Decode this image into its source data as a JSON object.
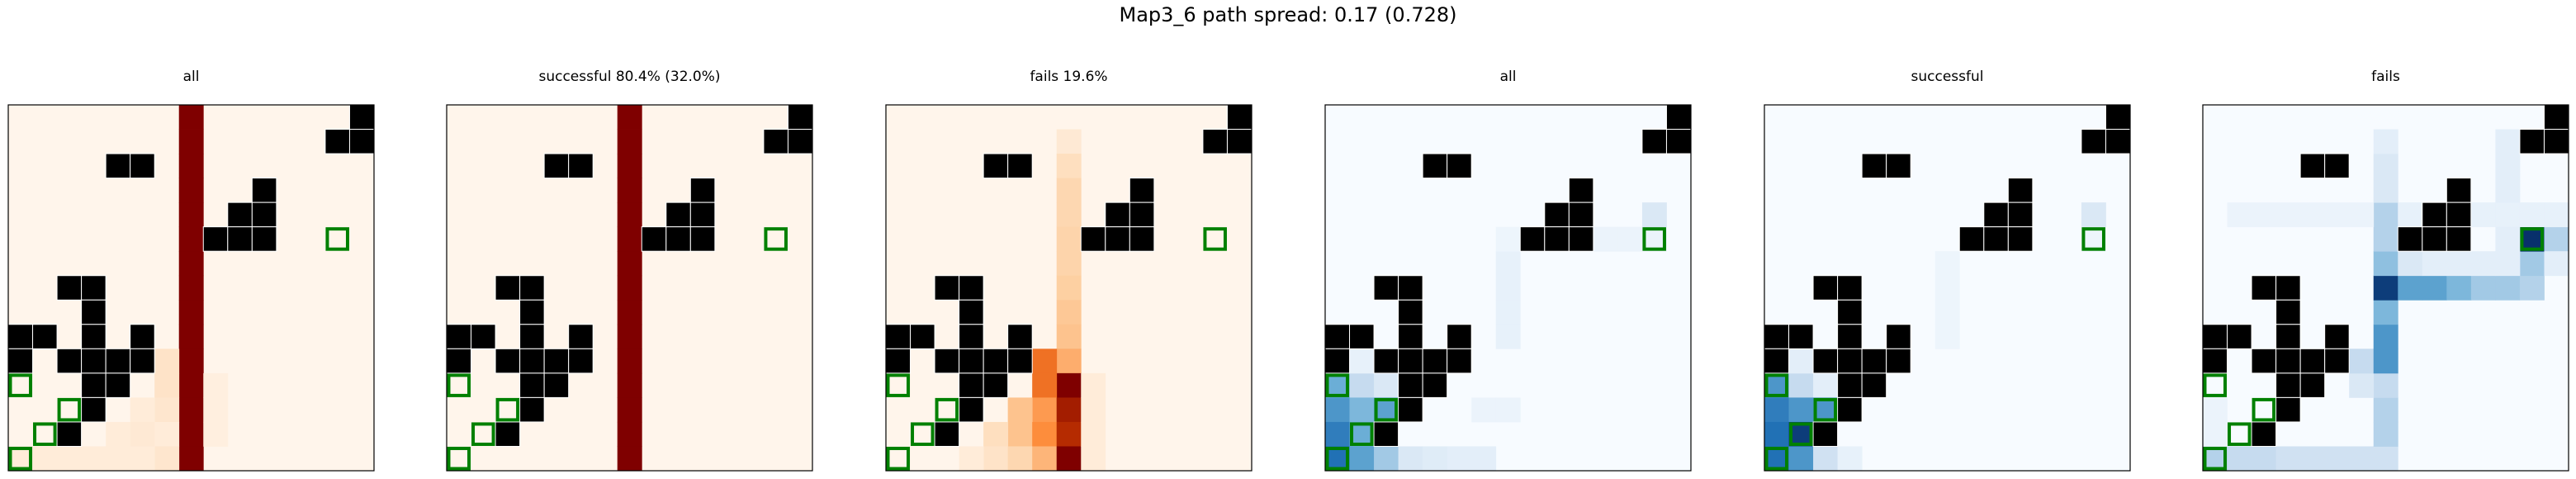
{
  "figure": {
    "title": "Map3_6 path spread: 0.17 (0.728)"
  },
  "chart_data": [
    {
      "type": "heatmap",
      "title": "all",
      "colormap": "Oranges",
      "grid": {
        "rows": 15,
        "cols": 15
      },
      "cells": [
        [
          7,
          0,
          1.0
        ],
        [
          7,
          1,
          1.0
        ],
        [
          7,
          2,
          1.0
        ],
        [
          7,
          3,
          1.0
        ],
        [
          7,
          4,
          1.0
        ],
        [
          7,
          5,
          1.0
        ],
        [
          7,
          6,
          1.0
        ],
        [
          7,
          7,
          1.0
        ],
        [
          7,
          8,
          1.0
        ],
        [
          7,
          9,
          1.0
        ],
        [
          7,
          10,
          1.0
        ],
        [
          7,
          11,
          1.0
        ],
        [
          7,
          12,
          1.0
        ],
        [
          7,
          13,
          1.0
        ],
        [
          7,
          14,
          1.0
        ],
        [
          6,
          10,
          0.12
        ],
        [
          6,
          11,
          0.12
        ],
        [
          6,
          12,
          0.1
        ],
        [
          5,
          12,
          0.06
        ],
        [
          5,
          13,
          0.08
        ],
        [
          4,
          13,
          0.06
        ],
        [
          6,
          13,
          0.06
        ],
        [
          6,
          14,
          0.1
        ],
        [
          5,
          14,
          0.06
        ],
        [
          4,
          14,
          0.06
        ],
        [
          3,
          14,
          0.06
        ],
        [
          2,
          14,
          0.06
        ],
        [
          1,
          14,
          0.06
        ],
        [
          0,
          14,
          0.06
        ],
        [
          8,
          11,
          0.04
        ],
        [
          8,
          12,
          0.04
        ],
        [
          8,
          13,
          0.04
        ]
      ]
    },
    {
      "type": "heatmap",
      "title": "successful 80.4% (32.0%)",
      "colormap": "Oranges",
      "grid": {
        "rows": 15,
        "cols": 15
      },
      "cells": [
        [
          7,
          0,
          1.0
        ],
        [
          7,
          1,
          1.0
        ],
        [
          7,
          2,
          1.0
        ],
        [
          7,
          3,
          1.0
        ],
        [
          7,
          4,
          1.0
        ],
        [
          7,
          5,
          1.0
        ],
        [
          7,
          6,
          1.0
        ],
        [
          7,
          7,
          1.0
        ],
        [
          7,
          8,
          1.0
        ],
        [
          7,
          9,
          1.0
        ],
        [
          7,
          10,
          1.0
        ],
        [
          7,
          11,
          1.0
        ],
        [
          7,
          12,
          1.0
        ],
        [
          7,
          13,
          1.0
        ],
        [
          7,
          14,
          1.0
        ]
      ]
    },
    {
      "type": "heatmap",
      "title": "fails 19.6%",
      "colormap": "Oranges",
      "grid": {
        "rows": 15,
        "cols": 15
      },
      "cells": [
        [
          7,
          1,
          0.08
        ],
        [
          7,
          2,
          0.15
        ],
        [
          7,
          3,
          0.2
        ],
        [
          7,
          4,
          0.2
        ],
        [
          7,
          5,
          0.22
        ],
        [
          7,
          6,
          0.22
        ],
        [
          7,
          7,
          0.25
        ],
        [
          7,
          8,
          0.28
        ],
        [
          7,
          9,
          0.3
        ],
        [
          7,
          10,
          0.38
        ],
        [
          6,
          10,
          0.6
        ],
        [
          7,
          11,
          1.0
        ],
        [
          6,
          11,
          0.6
        ],
        [
          6,
          12,
          0.45
        ],
        [
          7,
          12,
          0.9
        ],
        [
          5,
          12,
          0.3
        ],
        [
          5,
          13,
          0.3
        ],
        [
          6,
          13,
          0.5
        ],
        [
          7,
          13,
          0.85
        ],
        [
          4,
          13,
          0.15
        ],
        [
          4,
          14,
          0.12
        ],
        [
          5,
          14,
          0.2
        ],
        [
          6,
          14,
          0.35
        ],
        [
          7,
          14,
          1.0
        ],
        [
          3,
          14,
          0.06
        ],
        [
          8,
          11,
          0.06
        ],
        [
          8,
          12,
          0.06
        ],
        [
          8,
          13,
          0.06
        ],
        [
          8,
          14,
          0.06
        ]
      ]
    },
    {
      "type": "heatmap",
      "title": "all",
      "colormap": "Blues",
      "grid": {
        "rows": 15,
        "cols": 15
      },
      "cells": [
        [
          0,
          11,
          0.5
        ],
        [
          1,
          11,
          0.25
        ],
        [
          2,
          11,
          0.15
        ],
        [
          0,
          12,
          0.6
        ],
        [
          1,
          12,
          0.45
        ],
        [
          2,
          12,
          0.55
        ],
        [
          0,
          13,
          0.7
        ],
        [
          1,
          13,
          0.5
        ],
        [
          2,
          13,
          0.3
        ],
        [
          0,
          14,
          0.75
        ],
        [
          1,
          14,
          0.55
        ],
        [
          2,
          14,
          0.35
        ],
        [
          3,
          14,
          0.15
        ],
        [
          4,
          14,
          0.12
        ],
        [
          5,
          14,
          0.1
        ],
        [
          6,
          14,
          0.1
        ],
        [
          1,
          10,
          0.08
        ],
        [
          7,
          6,
          0.08
        ],
        [
          7,
          7,
          0.08
        ],
        [
          7,
          8,
          0.08
        ],
        [
          7,
          9,
          0.08
        ],
        [
          8,
          5,
          0.06
        ],
        [
          9,
          5,
          0.06
        ],
        [
          10,
          5,
          0.06
        ],
        [
          11,
          5,
          0.06
        ],
        [
          12,
          5,
          0.06
        ],
        [
          13,
          5,
          0.06
        ],
        [
          6,
          12,
          0.06
        ],
        [
          7,
          12,
          0.06
        ],
        [
          7,
          5,
          0.05
        ],
        [
          13,
          4,
          0.15
        ]
      ]
    },
    {
      "type": "heatmap",
      "title": "successful",
      "colormap": "Blues",
      "grid": {
        "rows": 15,
        "cols": 15
      },
      "cells": [
        [
          0,
          11,
          0.6
        ],
        [
          1,
          11,
          0.25
        ],
        [
          2,
          11,
          0.1
        ],
        [
          0,
          12,
          0.7
        ],
        [
          1,
          12,
          0.6
        ],
        [
          2,
          12,
          0.6
        ],
        [
          0,
          13,
          0.75
        ],
        [
          1,
          13,
          0.95
        ],
        [
          2,
          13,
          0.25
        ],
        [
          0,
          14,
          0.75
        ],
        [
          1,
          14,
          0.6
        ],
        [
          2,
          14,
          0.2
        ],
        [
          3,
          14,
          0.08
        ],
        [
          1,
          10,
          0.1
        ],
        [
          13,
          4,
          0.15
        ],
        [
          13,
          5,
          0.05
        ],
        [
          7,
          6,
          0.05
        ],
        [
          7,
          7,
          0.05
        ],
        [
          7,
          8,
          0.05
        ],
        [
          7,
          9,
          0.05
        ]
      ]
    },
    {
      "type": "heatmap",
      "title": "fails",
      "colormap": "Blues",
      "grid": {
        "rows": 15,
        "cols": 15
      },
      "cells": [
        [
          0,
          14,
          0.3
        ],
        [
          1,
          14,
          0.25
        ],
        [
          2,
          14,
          0.25
        ],
        [
          3,
          14,
          0.2
        ],
        [
          4,
          14,
          0.2
        ],
        [
          5,
          14,
          0.2
        ],
        [
          6,
          14,
          0.2
        ],
        [
          7,
          14,
          0.2
        ],
        [
          7,
          13,
          0.3
        ],
        [
          7,
          12,
          0.3
        ],
        [
          7,
          11,
          0.25
        ],
        [
          6,
          11,
          0.15
        ],
        [
          6,
          10,
          0.25
        ],
        [
          7,
          10,
          0.6
        ],
        [
          7,
          9,
          0.6
        ],
        [
          7,
          8,
          0.45
        ],
        [
          7,
          7,
          0.95
        ],
        [
          8,
          7,
          0.55
        ],
        [
          9,
          7,
          0.55
        ],
        [
          10,
          7,
          0.45
        ],
        [
          11,
          7,
          0.35
        ],
        [
          12,
          7,
          0.35
        ],
        [
          13,
          7,
          0.3
        ],
        [
          13,
          6,
          0.35
        ],
        [
          13,
          5,
          1.0
        ],
        [
          14,
          5,
          0.3
        ],
        [
          7,
          6,
          0.4
        ],
        [
          7,
          5,
          0.3
        ],
        [
          7,
          4,
          0.3
        ],
        [
          7,
          3,
          0.15
        ],
        [
          7,
          2,
          0.15
        ],
        [
          7,
          1,
          0.1
        ],
        [
          8,
          6,
          0.15
        ],
        [
          9,
          6,
          0.1
        ],
        [
          10,
          6,
          0.1
        ],
        [
          11,
          6,
          0.1
        ],
        [
          12,
          6,
          0.1
        ],
        [
          8,
          4,
          0.08
        ],
        [
          9,
          4,
          0.08
        ],
        [
          10,
          4,
          0.08
        ],
        [
          11,
          4,
          0.08
        ],
        [
          12,
          4,
          0.08
        ],
        [
          13,
          4,
          0.08
        ],
        [
          1,
          4,
          0.06
        ],
        [
          2,
          4,
          0.06
        ],
        [
          3,
          4,
          0.06
        ],
        [
          4,
          4,
          0.06
        ],
        [
          5,
          4,
          0.06
        ],
        [
          6,
          4,
          0.06
        ],
        [
          12,
          1,
          0.1
        ],
        [
          12,
          2,
          0.1
        ],
        [
          12,
          3,
          0.1
        ],
        [
          12,
          5,
          0.1
        ],
        [
          0,
          12,
          0.06
        ],
        [
          0,
          13,
          0.06
        ],
        [
          14,
          6,
          0.1
        ],
        [
          14,
          4,
          0.08
        ]
      ]
    }
  ],
  "map": {
    "obstacles": [
      [
        14,
        0
      ],
      [
        13,
        1
      ],
      [
        14,
        1
      ],
      [
        4,
        2
      ],
      [
        5,
        2
      ],
      [
        10,
        3
      ],
      [
        9,
        4
      ],
      [
        10,
        4
      ],
      [
        8,
        5
      ],
      [
        9,
        5
      ],
      [
        10,
        5
      ],
      [
        2,
        7
      ],
      [
        3,
        7
      ],
      [
        3,
        8
      ],
      [
        0,
        9
      ],
      [
        1,
        9
      ],
      [
        3,
        9
      ],
      [
        5,
        9
      ],
      [
        0,
        10
      ],
      [
        2,
        10
      ],
      [
        3,
        10
      ],
      [
        4,
        10
      ],
      [
        5,
        10
      ],
      [
        3,
        11
      ],
      [
        4,
        11
      ],
      [
        3,
        12
      ],
      [
        2,
        13
      ]
    ],
    "goal_markers": [
      [
        13,
        5
      ],
      [
        0,
        11
      ],
      [
        2,
        12
      ],
      [
        1,
        13
      ],
      [
        0,
        14
      ]
    ],
    "cmaps": {
      "Oranges": [
        "#fff5eb",
        "#fdd0a2",
        "#fd8d3c",
        "#d94801",
        "#7f0000"
      ],
      "Blues": [
        "#f7fbff",
        "#c6dbef",
        "#6baed6",
        "#2171b5",
        "#08306b"
      ]
    },
    "obstacle_color": "#000000",
    "marker_color": "#008000"
  }
}
